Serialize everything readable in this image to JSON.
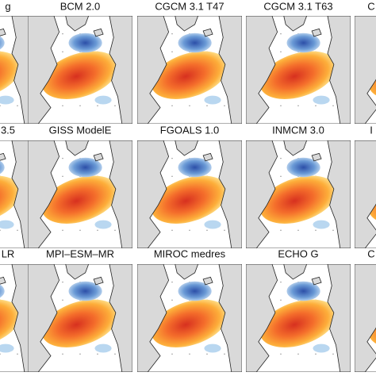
{
  "panels": [
    [
      "g",
      "BCM 2.0",
      "CGCM 3.1 T47",
      "CGCM 3.1 T63",
      "C"
    ],
    [
      "3.5",
      "GISS ModelE",
      "FGOALS 1.0",
      "INMCM 3.0",
      "I"
    ],
    [
      "LR",
      "MPI–ESM–MR",
      "MIROC medres",
      "ECHO G",
      "C"
    ]
  ]
}
